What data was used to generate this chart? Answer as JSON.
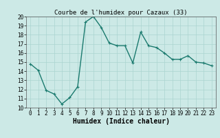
{
  "x": [
    0,
    1,
    2,
    3,
    4,
    5,
    6,
    7,
    8,
    9,
    10,
    11,
    12,
    13,
    14,
    15,
    16,
    17,
    18,
    19,
    20,
    21,
    22,
    23
  ],
  "y": [
    14.8,
    14.1,
    11.9,
    11.5,
    10.4,
    11.1,
    12.3,
    19.4,
    20.0,
    18.8,
    17.1,
    16.8,
    16.8,
    14.9,
    18.3,
    16.8,
    16.6,
    16.0,
    15.3,
    15.3,
    15.7,
    15.0,
    14.9,
    14.6
  ],
  "line_color": "#1a7a6e",
  "marker": "+",
  "marker_size": 3,
  "bg_color": "#cce9e6",
  "grid_color": "#aad4d0",
  "title": "Courbe de l'humidex pour Cazaux (33)",
  "xlabel": "Humidex (Indice chaleur)",
  "xlim": [
    -0.5,
    23.5
  ],
  "ylim": [
    10,
    20
  ],
  "yticks": [
    10,
    11,
    12,
    13,
    14,
    15,
    16,
    17,
    18,
    19,
    20
  ],
  "xticks": [
    0,
    1,
    2,
    3,
    4,
    5,
    6,
    7,
    8,
    9,
    10,
    11,
    12,
    13,
    14,
    15,
    16,
    17,
    18,
    19,
    20,
    21,
    22,
    23
  ],
  "title_fontsize": 6.5,
  "label_fontsize": 7,
  "tick_fontsize": 5.5,
  "linewidth": 1.0
}
